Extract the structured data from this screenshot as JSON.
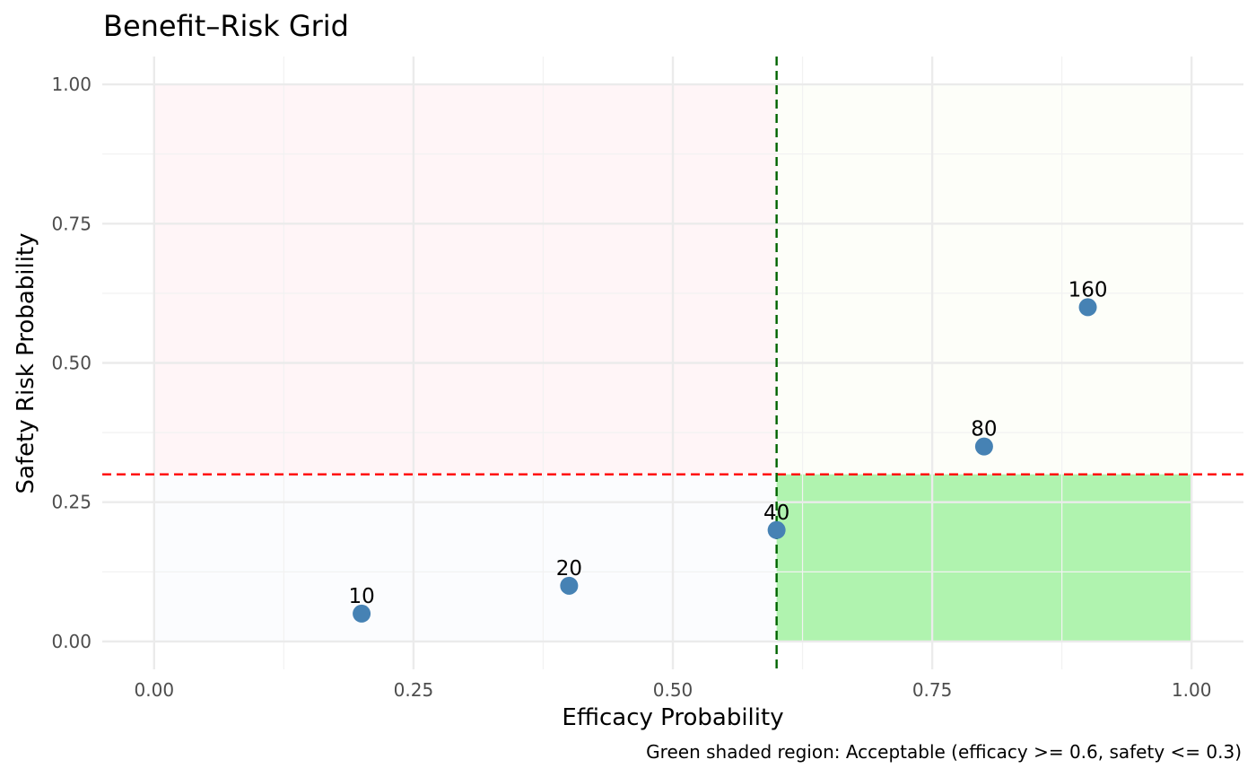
{
  "chart_data": {
    "type": "scatter",
    "title": "Benefit–Risk Grid",
    "xlabel": "Efficacy Probability",
    "ylabel": "Safety Risk Probability",
    "caption": "Green shaded region: Acceptable (efficacy >= 0.6, safety <= 0.3)",
    "xlim": [
      -0.05,
      1.05
    ],
    "ylim": [
      -0.05,
      1.05
    ],
    "x_ticks": [
      0,
      0.25,
      0.5,
      0.75,
      1
    ],
    "x_tick_labels": [
      "0.00",
      "0.25",
      "0.50",
      "0.75",
      "1.00"
    ],
    "y_ticks": [
      0,
      0.25,
      0.5,
      0.75,
      1
    ],
    "y_tick_labels": [
      "0.00",
      "0.25",
      "0.50",
      "0.75",
      "1.00"
    ],
    "grid": true,
    "point_color": "#4682B4",
    "points": [
      {
        "x": 0.2,
        "y": 0.05,
        "label": "10"
      },
      {
        "x": 0.4,
        "y": 0.1,
        "label": "20"
      },
      {
        "x": 0.6,
        "y": 0.2,
        "label": "40"
      },
      {
        "x": 0.8,
        "y": 0.35,
        "label": "80"
      },
      {
        "x": 0.9,
        "y": 0.6,
        "label": "160"
      }
    ],
    "thresholds": {
      "efficacy": 0.6,
      "safety": 0.3,
      "efficacy_line_color": "#006400",
      "safety_line_color": "#FF0000"
    },
    "regions": [
      {
        "name": "high-risk-low-efficacy",
        "x": [
          0,
          0.6
        ],
        "y": [
          0.3,
          1
        ],
        "color": "#FFF5F7"
      },
      {
        "name": "high-risk-high-efficacy",
        "x": [
          0.6,
          1
        ],
        "y": [
          0.3,
          1
        ],
        "color": "#FDFEF9"
      },
      {
        "name": "low-risk-low-efficacy",
        "x": [
          0,
          0.6
        ],
        "y": [
          0,
          0.3
        ],
        "color": "#FBFCFE"
      },
      {
        "name": "acceptable",
        "x": [
          0.6,
          1
        ],
        "y": [
          0,
          0.3
        ],
        "color": "#B0F3AF"
      }
    ]
  }
}
